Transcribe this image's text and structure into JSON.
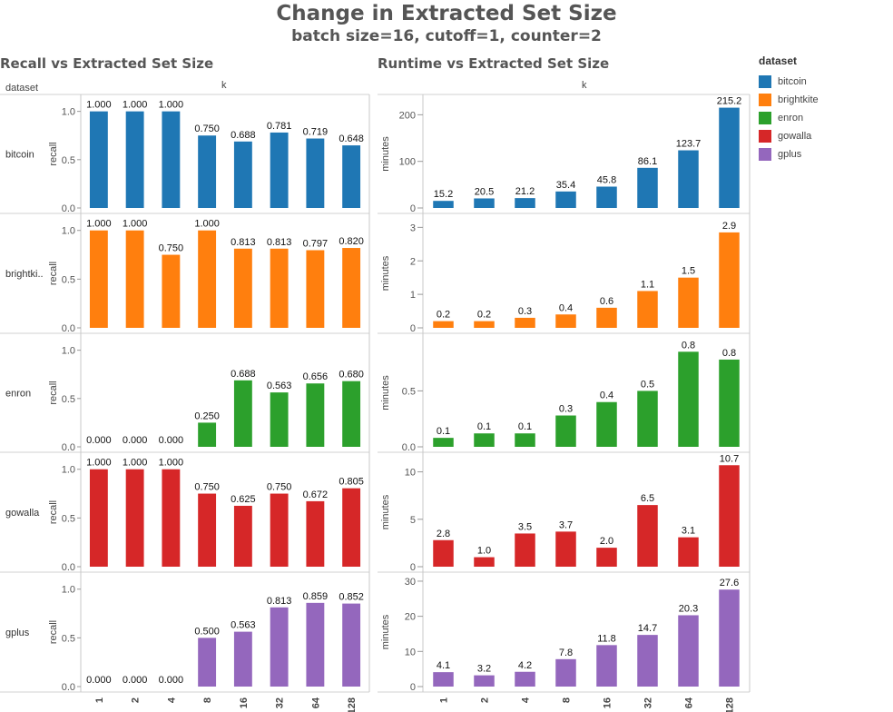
{
  "title": "Change in Extracted Set Size",
  "subtitle": "batch size=16, cutoff=1, counter=2",
  "legend": {
    "title": "dataset",
    "items": [
      {
        "label": "bitcoin",
        "color": "#1f77b4"
      },
      {
        "label": "brightkite",
        "color": "#ff7f0e"
      },
      {
        "label": "enron",
        "color": "#2ca02c"
      },
      {
        "label": "gowalla",
        "color": "#d62728"
      },
      {
        "label": "gplus",
        "color": "#9467bd"
      }
    ]
  },
  "row_header": "dataset",
  "row_labels": [
    "bitcoin",
    "brightki..",
    "enron",
    "gowalla",
    "gplus"
  ],
  "chart_data": [
    {
      "type": "bar",
      "title": "Recall vs Extracted Set Size",
      "xlabel": "k",
      "ylabel": "recall",
      "categories": [
        "1",
        "2",
        "4",
        "8",
        "16",
        "32",
        "64",
        "128"
      ],
      "panels": [
        {
          "dataset": "bitcoin",
          "color": "#1f77b4",
          "ylim": [
            0,
            1.1
          ],
          "ticks": [
            0,
            0.5,
            1
          ],
          "tick_labels": [
            "0.0",
            "0.5",
            "1.0"
          ],
          "values": [
            1.0,
            1.0,
            1.0,
            0.75,
            0.688,
            0.781,
            0.719,
            0.648
          ],
          "labels": [
            "1.000",
            "1.000",
            "1.000",
            "0.750",
            "0.688",
            "0.781",
            "0.719",
            "0.648"
          ]
        },
        {
          "dataset": "brightkite",
          "color": "#ff7f0e",
          "ylim": [
            0,
            1.1
          ],
          "ticks": [
            0,
            0.5,
            1
          ],
          "tick_labels": [
            "0.0",
            "0.5",
            "1.0"
          ],
          "values": [
            1.0,
            1.0,
            0.75,
            1.0,
            0.813,
            0.813,
            0.797,
            0.82
          ],
          "labels": [
            "1.000",
            "1.000",
            "0.750",
            "1.000",
            "0.813",
            "0.813",
            "0.797",
            "0.820"
          ]
        },
        {
          "dataset": "enron",
          "color": "#2ca02c",
          "ylim": [
            0,
            1.1
          ],
          "ticks": [
            0,
            0.5,
            1
          ],
          "tick_labels": [
            "0.0",
            "0.5",
            "1.0"
          ],
          "values": [
            0,
            0,
            0,
            0.25,
            0.688,
            0.563,
            0.656,
            0.68
          ],
          "labels": [
            "0.000",
            "0.000",
            "0.000",
            "0.250",
            "0.688",
            "0.563",
            "0.656",
            "0.680"
          ]
        },
        {
          "dataset": "gowalla",
          "color": "#d62728",
          "ylim": [
            0,
            1.1
          ],
          "ticks": [
            0,
            0.5,
            1
          ],
          "tick_labels": [
            "0.0",
            "0.5",
            "1.0"
          ],
          "values": [
            1.0,
            1.0,
            1.0,
            0.75,
            0.625,
            0.75,
            0.672,
            0.805
          ],
          "labels": [
            "1.000",
            "1.000",
            "1.000",
            "0.750",
            "0.625",
            "0.750",
            "0.672",
            "0.805"
          ]
        },
        {
          "dataset": "gplus",
          "color": "#9467bd",
          "ylim": [
            0,
            1.1
          ],
          "ticks": [
            0,
            0.5,
            1
          ],
          "tick_labels": [
            "0.0",
            "0.5",
            "1.0"
          ],
          "values": [
            0,
            0,
            0,
            0.5,
            0.563,
            0.813,
            0.859,
            0.852
          ],
          "labels": [
            "0.000",
            "0.000",
            "0.000",
            "0.500",
            "0.563",
            "0.813",
            "0.859",
            "0.852"
          ]
        }
      ]
    },
    {
      "type": "bar",
      "title": "Runtime vs Extracted Set Size",
      "xlabel": "k",
      "ylabel": "minutes",
      "categories": [
        "1",
        "2",
        "4",
        "8",
        "16",
        "32",
        "64",
        "128"
      ],
      "panels": [
        {
          "dataset": "bitcoin",
          "color": "#1f77b4",
          "ylim": [
            0,
            228
          ],
          "ticks": [
            0,
            100,
            200
          ],
          "tick_labels": [
            "0",
            "100",
            "200"
          ],
          "values": [
            15.2,
            20.5,
            21.2,
            35.4,
            45.8,
            86.1,
            123.7,
            215.2
          ],
          "labels": [
            "15.2",
            "20.5",
            "21.2",
            "35.4",
            "45.8",
            "86.1",
            "123.7",
            "215.2"
          ]
        },
        {
          "dataset": "brightkite",
          "color": "#ff7f0e",
          "ylim": [
            0,
            3.2
          ],
          "ticks": [
            0,
            1,
            2,
            3
          ],
          "tick_labels": [
            "0",
            "1",
            "2",
            "3"
          ],
          "values": [
            0.2,
            0.2,
            0.3,
            0.4,
            0.6,
            1.1,
            1.5,
            2.85
          ],
          "labels": [
            "0.2",
            "0.2",
            "0.3",
            "0.4",
            "0.6",
            "1.1",
            "1.5",
            "2.9"
          ]
        },
        {
          "dataset": "enron",
          "color": "#2ca02c",
          "ylim": [
            0,
            0.95
          ],
          "ticks": [
            0,
            0.5
          ],
          "tick_labels": [
            "0.0",
            "0.5"
          ],
          "values": [
            0.08,
            0.12,
            0.12,
            0.28,
            0.4,
            0.5,
            0.85,
            0.78
          ],
          "labels": [
            "0.1",
            "0.1",
            "0.1",
            "0.3",
            "0.4",
            "0.5",
            "0.8",
            "0.8"
          ]
        },
        {
          "dataset": "gowalla",
          "color": "#d62728",
          "ylim": [
            0,
            11.3
          ],
          "ticks": [
            0,
            5,
            10
          ],
          "tick_labels": [
            "0",
            "5",
            "10"
          ],
          "values": [
            2.8,
            1.0,
            3.5,
            3.7,
            2.0,
            6.5,
            3.1,
            10.7
          ],
          "labels": [
            "2.8",
            "1.0",
            "3.5",
            "3.7",
            "2.0",
            "6.5",
            "3.1",
            "10.7"
          ]
        },
        {
          "dataset": "gplus",
          "color": "#9467bd",
          "ylim": [
            0,
            30.5
          ],
          "ticks": [
            0,
            10,
            20,
            30
          ],
          "tick_labels": [
            "0",
            "10",
            "20",
            "30"
          ],
          "values": [
            4.1,
            3.2,
            4.2,
            7.8,
            11.8,
            14.7,
            20.3,
            27.6
          ],
          "labels": [
            "4.1",
            "3.2",
            "4.2",
            "7.8",
            "11.8",
            "14.7",
            "20.3",
            "27.6"
          ]
        }
      ]
    }
  ]
}
